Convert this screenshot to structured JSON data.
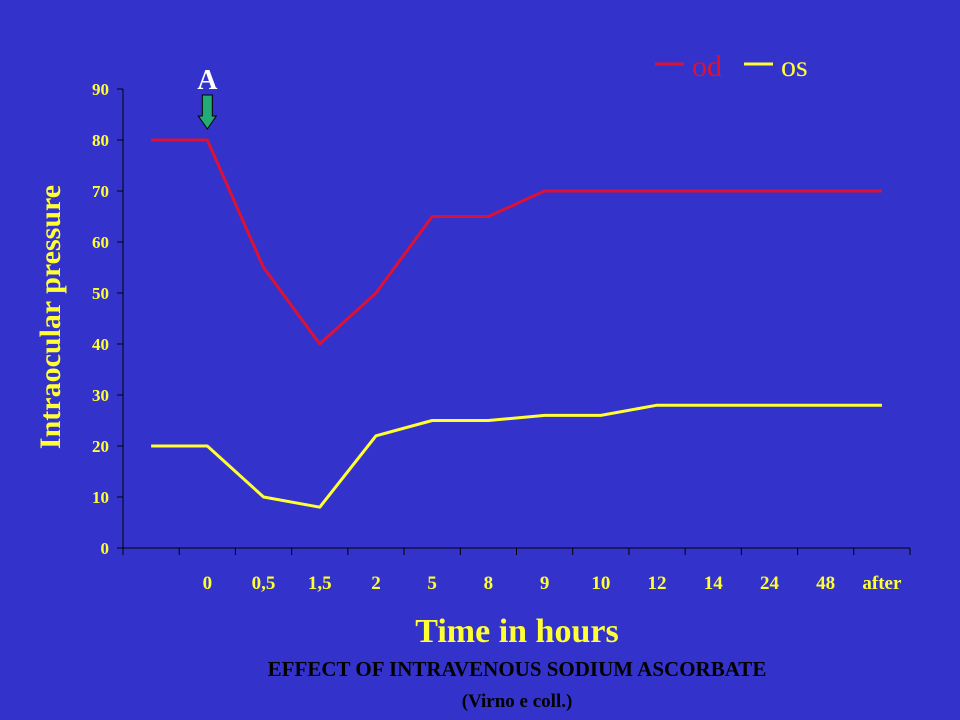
{
  "colors": {
    "background": "#3333cc",
    "axis_text": "#ffff33",
    "axis_lines": "#000000",
    "title_text": "#000000",
    "od_line": "#dd1133",
    "os_line": "#ffff33",
    "marker_label": "#ffffff",
    "arrow_fill": "#22aa77"
  },
  "marker": {
    "label": "A",
    "icon": "down-arrow-icon",
    "at_category_index": 1
  },
  "chart_data": {
    "type": "line",
    "title": "EFFECT OF INTRAVENOUS SODIUM ASCORBATE",
    "subtitle": "(Virno e coll.)",
    "xlabel": "Time in hours",
    "ylabel": "Intraocular pressure",
    "ylim": [
      0,
      90
    ],
    "yticks": [
      0,
      10,
      20,
      30,
      40,
      50,
      60,
      70,
      80,
      90
    ],
    "grid": false,
    "legend_position": "top-right",
    "categories": [
      "",
      "0",
      "0,5",
      "1,5",
      "2",
      "5",
      "8",
      "9",
      "10",
      "12",
      "14",
      "24",
      "48",
      "after"
    ],
    "series": [
      {
        "name": "od",
        "values": [
          80,
          80,
          55,
          40,
          50,
          65,
          65,
          70,
          70,
          70,
          70,
          70,
          70,
          70
        ]
      },
      {
        "name": "os",
        "values": [
          20,
          20,
          10,
          8,
          22,
          25,
          25,
          26,
          26,
          28,
          28,
          28,
          28,
          28
        ]
      }
    ]
  }
}
